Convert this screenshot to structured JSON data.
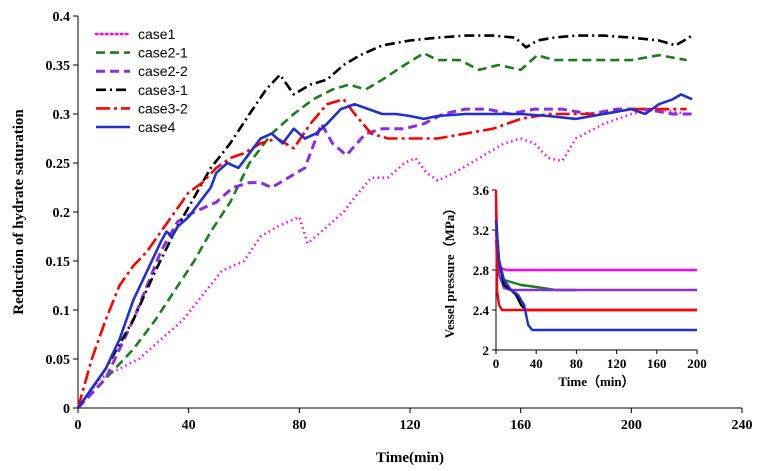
{
  "chart_data": [
    {
      "type": "line",
      "title": "",
      "xlabel": "Time(min)",
      "ylabel": "Reduction of  hydrate saturation",
      "xlim": [
        0,
        240
      ],
      "ylim": [
        0,
        0.4
      ],
      "x_ticks": [
        "0",
        "40",
        "80",
        "120",
        "160",
        "200",
        "240"
      ],
      "y_ticks": [
        "0",
        "0.05",
        "0.1",
        "0.15",
        "0.2",
        "0.25",
        "0.3",
        "0.35",
        "0.4"
      ],
      "legend_position": "top-left",
      "series": [
        {
          "name": "case1",
          "color": "#ff00ff",
          "dash": "dotted",
          "x": [
            0,
            8,
            15,
            22,
            30,
            38,
            45,
            52,
            60,
            66,
            72,
            80,
            83,
            90,
            96,
            100,
            106,
            112,
            118,
            122,
            126,
            130,
            136,
            142,
            148,
            154,
            160,
            165,
            170,
            175,
            180,
            190,
            200,
            210,
            220
          ],
          "y": [
            0,
            0.03,
            0.04,
            0.05,
            0.07,
            0.09,
            0.115,
            0.14,
            0.15,
            0.175,
            0.185,
            0.195,
            0.168,
            0.185,
            0.2,
            0.215,
            0.235,
            0.235,
            0.25,
            0.255,
            0.24,
            0.232,
            0.24,
            0.25,
            0.26,
            0.27,
            0.275,
            0.27,
            0.255,
            0.252,
            0.275,
            0.29,
            0.3,
            0.305,
            0.3
          ]
        },
        {
          "name": "case2-1",
          "color": "#1a7f1a",
          "dash": "dashed",
          "x": [
            0,
            10,
            20,
            28,
            35,
            42,
            48,
            55,
            62,
            70,
            78,
            85,
            92,
            98,
            104,
            110,
            118,
            125,
            130,
            138,
            145,
            152,
            160,
            166,
            172,
            180,
            190,
            200,
            210,
            220
          ],
          "y": [
            0,
            0.03,
            0.06,
            0.09,
            0.12,
            0.15,
            0.18,
            0.21,
            0.25,
            0.28,
            0.3,
            0.315,
            0.325,
            0.33,
            0.325,
            0.335,
            0.35,
            0.362,
            0.355,
            0.355,
            0.345,
            0.35,
            0.345,
            0.36,
            0.355,
            0.355,
            0.355,
            0.355,
            0.36,
            0.355
          ]
        },
        {
          "name": "case2-2",
          "color": "#8b2be2",
          "dash": "dashed-thick",
          "x": [
            0,
            10,
            20,
            30,
            36,
            42,
            50,
            56,
            62,
            66,
            70,
            76,
            82,
            88,
            92,
            97,
            104,
            110,
            118,
            125,
            132,
            140,
            148,
            156,
            165,
            175,
            185,
            195,
            205,
            215,
            222
          ],
          "y": [
            0,
            0.03,
            0.09,
            0.16,
            0.19,
            0.2,
            0.21,
            0.225,
            0.23,
            0.23,
            0.225,
            0.235,
            0.245,
            0.29,
            0.27,
            0.258,
            0.28,
            0.285,
            0.285,
            0.29,
            0.3,
            0.305,
            0.305,
            0.3,
            0.305,
            0.305,
            0.3,
            0.305,
            0.305,
            0.3,
            0.3
          ]
        },
        {
          "name": "case3-1",
          "color": "#000000",
          "dash": "dashdot",
          "x": [
            0,
            10,
            20,
            28,
            35,
            42,
            48,
            55,
            62,
            68,
            73,
            78,
            84,
            90,
            96,
            102,
            110,
            120,
            130,
            140,
            150,
            158,
            162,
            166,
            172,
            180,
            190,
            200,
            210,
            216,
            222
          ],
          "y": [
            0,
            0.04,
            0.09,
            0.14,
            0.18,
            0.215,
            0.245,
            0.27,
            0.3,
            0.325,
            0.34,
            0.32,
            0.33,
            0.335,
            0.35,
            0.36,
            0.37,
            0.375,
            0.378,
            0.38,
            0.38,
            0.378,
            0.368,
            0.375,
            0.378,
            0.38,
            0.38,
            0.378,
            0.375,
            0.37,
            0.38
          ]
        },
        {
          "name": "case3-2",
          "color": "#ff0000",
          "dash": "longdashdot",
          "x": [
            0,
            5,
            10,
            15,
            20,
            25,
            30,
            35,
            40,
            45,
            50,
            55,
            60,
            66,
            72,
            78,
            84,
            90,
            96,
            100,
            106,
            112,
            118,
            125,
            130,
            140,
            150,
            160,
            170,
            180,
            190,
            200,
            210,
            220
          ],
          "y": [
            0,
            0.05,
            0.09,
            0.125,
            0.145,
            0.16,
            0.18,
            0.2,
            0.22,
            0.23,
            0.245,
            0.255,
            0.26,
            0.27,
            0.275,
            0.265,
            0.29,
            0.31,
            0.315,
            0.3,
            0.28,
            0.275,
            0.275,
            0.275,
            0.275,
            0.28,
            0.285,
            0.295,
            0.3,
            0.3,
            0.3,
            0.305,
            0.305,
            0.305
          ]
        },
        {
          "name": "case4",
          "color": "#1f2fd0",
          "dash": "solid",
          "x": [
            0,
            5,
            10,
            15,
            20,
            25,
            30,
            32,
            34,
            36,
            40,
            44,
            48,
            50,
            54,
            58,
            62,
            66,
            70,
            74,
            78,
            82,
            86,
            90,
            95,
            100,
            105,
            110,
            115,
            120,
            125,
            130,
            140,
            150,
            160,
            170,
            180,
            190,
            200,
            205,
            210,
            215,
            218,
            222
          ],
          "y": [
            0,
            0.02,
            0.04,
            0.07,
            0.11,
            0.14,
            0.17,
            0.18,
            0.175,
            0.185,
            0.195,
            0.21,
            0.225,
            0.24,
            0.25,
            0.245,
            0.26,
            0.275,
            0.28,
            0.27,
            0.285,
            0.275,
            0.28,
            0.29,
            0.305,
            0.31,
            0.305,
            0.3,
            0.3,
            0.298,
            0.295,
            0.298,
            0.3,
            0.3,
            0.3,
            0.298,
            0.295,
            0.3,
            0.305,
            0.3,
            0.31,
            0.315,
            0.32,
            0.315
          ]
        }
      ]
    },
    {
      "type": "line",
      "title": "",
      "xlabel": "Time（min）",
      "ylabel": "Vessel pressure（MPa）",
      "xlim": [
        0,
        200
      ],
      "ylim": [
        2,
        3.6
      ],
      "x_ticks": [
        "0",
        "40",
        "80",
        "120",
        "160",
        "200"
      ],
      "y_ticks": [
        "2",
        "2.4",
        "2.8",
        "3.2",
        "3.6"
      ],
      "series": [
        {
          "color": "#ff00ff",
          "x": [
            0,
            2,
            5,
            10,
            50,
            100,
            150,
            200
          ],
          "y": [
            3.5,
            2.9,
            2.82,
            2.8,
            2.8,
            2.8,
            2.8,
            2.8
          ]
        },
        {
          "color": "#1a7f1a",
          "x": [
            0,
            3,
            8,
            15,
            25,
            40,
            60,
            80
          ],
          "y": [
            3.2,
            2.85,
            2.7,
            2.68,
            2.65,
            2.63,
            2.6,
            2.6
          ]
        },
        {
          "color": "#8b2be2",
          "x": [
            0,
            3,
            8,
            15,
            30,
            60,
            100,
            150,
            200
          ],
          "y": [
            3.1,
            2.75,
            2.62,
            2.6,
            2.6,
            2.6,
            2.6,
            2.6,
            2.6
          ]
        },
        {
          "color": "#000000",
          "x": [
            0,
            3,
            8,
            15,
            20,
            25,
            30,
            40,
            60,
            100,
            150,
            200
          ],
          "y": [
            3.3,
            2.9,
            2.65,
            2.6,
            2.55,
            2.45,
            2.4,
            2.4,
            2.4,
            2.4,
            2.4,
            2.4
          ]
        },
        {
          "color": "#ff0000",
          "x": [
            0,
            1,
            3,
            6,
            10,
            20,
            40,
            80,
            120,
            160,
            200
          ],
          "y": [
            3.6,
            2.6,
            2.45,
            2.4,
            2.4,
            2.4,
            2.4,
            2.4,
            2.4,
            2.4,
            2.4
          ]
        },
        {
          "color": "#1f2fd0",
          "x": [
            0,
            3,
            8,
            15,
            22,
            28,
            32,
            36,
            40,
            60,
            100,
            150,
            200
          ],
          "y": [
            3.3,
            2.9,
            2.7,
            2.6,
            2.55,
            2.45,
            2.25,
            2.2,
            2.2,
            2.2,
            2.2,
            2.2,
            2.2
          ]
        }
      ]
    }
  ]
}
